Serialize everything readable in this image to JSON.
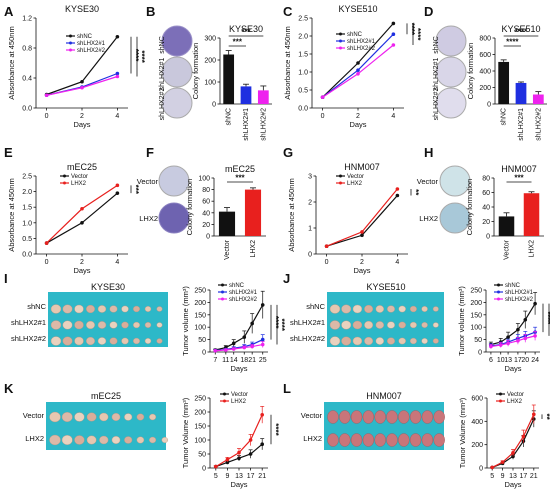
{
  "panels": {
    "A": {
      "letter": "A"
    },
    "B": {
      "letter": "B"
    },
    "C": {
      "letter": "C"
    },
    "D": {
      "letter": "D"
    },
    "E": {
      "letter": "E"
    },
    "F": {
      "letter": "F"
    },
    "G": {
      "letter": "G"
    },
    "H": {
      "letter": "H"
    },
    "I": {
      "letter": "I"
    },
    "J": {
      "letter": "J"
    },
    "K": {
      "letter": "K"
    },
    "L": {
      "letter": "L"
    }
  },
  "image_labels": {
    "B": [
      "shNC",
      "shLHX2#1",
      "shLHX2#2"
    ],
    "D": [
      "shNC",
      "shLHX2#1",
      "shLHX2#2"
    ],
    "F": [
      "Vector",
      "LHX2"
    ],
    "H": [
      "Vector",
      "LHX2"
    ],
    "I": {
      "title": "KYSE30",
      "rows": [
        "shNC",
        "shLHX2#1",
        "shLHX2#2"
      ]
    },
    "J": {
      "title": "KYSE510",
      "rows": [
        "shNC",
        "shLHX2#1",
        "shLHX2#2"
      ]
    },
    "K": {
      "title": "mEC25",
      "rows": [
        "Vector",
        "LHX2"
      ]
    },
    "L": {
      "title": "HNM007",
      "rows": [
        "Vector",
        "LHX2"
      ]
    }
  },
  "colors": {
    "black": "#111111",
    "blue": "#1f2fe0",
    "magenta": "#ee22ee",
    "red": "#e8201e",
    "dish_blue": "#5b50a8",
    "dish_light": "#d8dde8",
    "tray": "#2db8c8"
  },
  "chart_data": [
    {
      "id": "A",
      "type": "line",
      "title": "KYSE30",
      "xlabel": "Days",
      "ylabel": "Absorbance at 450nm",
      "x": [
        0,
        2,
        4
      ],
      "xticks": [
        0,
        2,
        4
      ],
      "xlim": [
        -0.6,
        4.6
      ],
      "ylim": [
        0,
        1.2
      ],
      "yticks": [
        0.0,
        0.4,
        0.8,
        1.2
      ],
      "series": [
        {
          "name": "shNC",
          "color": "#111111",
          "values": [
            0.18,
            0.35,
            0.95
          ]
        },
        {
          "name": "shLHX2#1",
          "color": "#1f2fe0",
          "values": [
            0.17,
            0.28,
            0.46
          ]
        },
        {
          "name": "shLHX2#2",
          "color": "#ee22ee",
          "values": [
            0.17,
            0.27,
            0.42
          ]
        }
      ],
      "significance": [
        "****",
        "****"
      ]
    },
    {
      "id": "B",
      "type": "bar",
      "title": "KYSE30",
      "ylabel": "Colony formation",
      "categories": [
        "shNC",
        "shLHX2#1",
        "shLHX2#2"
      ],
      "values": [
        225,
        80,
        62
      ],
      "errors": [
        18,
        10,
        20
      ],
      "colors": [
        "#111111",
        "#1f2fe0",
        "#ee22ee"
      ],
      "ylim": [
        0,
        300
      ],
      "yticks": [
        0,
        100,
        200,
        300
      ],
      "significance": [
        "***",
        "***"
      ]
    },
    {
      "id": "C",
      "type": "line",
      "title": "KYSE510",
      "xlabel": "Days",
      "ylabel": "Absorbance at 450nm",
      "x": [
        0,
        2,
        4
      ],
      "xticks": [
        0,
        2,
        4
      ],
      "xlim": [
        -0.6,
        4.6
      ],
      "ylim": [
        0,
        2.5
      ],
      "yticks": [
        0.0,
        0.5,
        1.0,
        1.5,
        2.0,
        2.5
      ],
      "series": [
        {
          "name": "shNC",
          "color": "#111111",
          "values": [
            0.3,
            1.25,
            2.35
          ]
        },
        {
          "name": "shLHX2#1",
          "color": "#1f2fe0",
          "values": [
            0.3,
            1.05,
            2.05
          ]
        },
        {
          "name": "shLHX2#2",
          "color": "#ee22ee",
          "values": [
            0.3,
            0.95,
            1.75
          ]
        }
      ],
      "significance": [
        "****",
        "****"
      ]
    },
    {
      "id": "D",
      "type": "bar",
      "title": "KYSE510",
      "ylabel": "Colony formation",
      "categories": [
        "shNC",
        "shLHX2#1",
        "shLHX2#2"
      ],
      "values": [
        510,
        255,
        115
      ],
      "errors": [
        25,
        12,
        35
      ],
      "colors": [
        "#111111",
        "#1f2fe0",
        "#ee22ee"
      ],
      "ylim": [
        0,
        800
      ],
      "yticks": [
        0,
        200,
        400,
        600,
        800
      ],
      "significance": [
        "****",
        "****"
      ]
    },
    {
      "id": "E",
      "type": "line",
      "title": "mEC25",
      "xlabel": "Days",
      "ylabel": "Absorbance at 450nm",
      "x": [
        0,
        2,
        4
      ],
      "xticks": [
        0,
        2,
        4
      ],
      "xlim": [
        -0.6,
        4.6
      ],
      "ylim": [
        0,
        2.5
      ],
      "yticks": [
        0.0,
        0.5,
        1.0,
        1.5,
        2.0,
        2.5
      ],
      "series": [
        {
          "name": "Vector",
          "color": "#111111",
          "values": [
            0.35,
            1.0,
            1.95
          ]
        },
        {
          "name": "LHX2",
          "color": "#e8201e",
          "values": [
            0.35,
            1.45,
            2.2
          ]
        }
      ],
      "significance": [
        "***"
      ]
    },
    {
      "id": "F",
      "type": "bar",
      "title": "mEC25",
      "ylabel": "Colony formation",
      "categories": [
        "Vector",
        "LHX2"
      ],
      "values": [
        42,
        80
      ],
      "errors": [
        7,
        3
      ],
      "colors": [
        "#111111",
        "#e8201e"
      ],
      "ylim": [
        0,
        100
      ],
      "yticks": [
        0,
        20,
        40,
        60,
        80,
        100
      ],
      "significance": [
        "***"
      ]
    },
    {
      "id": "G",
      "type": "line",
      "title": "HNM007",
      "xlabel": "Days",
      "ylabel": "Absorbance at 450nm",
      "x": [
        0,
        2,
        4
      ],
      "xticks": [
        0,
        2,
        4
      ],
      "xlim": [
        -0.6,
        4.6
      ],
      "ylim": [
        0,
        3
      ],
      "yticks": [
        0,
        1,
        2,
        3
      ],
      "series": [
        {
          "name": "Vector",
          "color": "#111111",
          "values": [
            0.3,
            0.72,
            2.25
          ]
        },
        {
          "name": "LHX2",
          "color": "#e8201e",
          "values": [
            0.3,
            0.85,
            2.5
          ]
        }
      ],
      "significance": [
        "**"
      ]
    },
    {
      "id": "H",
      "type": "bar",
      "title": "HNM007",
      "ylabel": "Colony formation",
      "categories": [
        "Vector",
        "LHX2"
      ],
      "values": [
        27,
        59
      ],
      "errors": [
        5,
        2
      ],
      "colors": [
        "#111111",
        "#e8201e"
      ],
      "ylim": [
        0,
        80
      ],
      "yticks": [
        0,
        20,
        40,
        60,
        80
      ],
      "significance": [
        "***"
      ]
    },
    {
      "id": "I",
      "type": "line",
      "ylabel": "Tumor volume (mm³)",
      "xlabel": "Days",
      "x": [
        7,
        11,
        14,
        18,
        21,
        25
      ],
      "xticks": [
        7,
        11,
        14,
        18,
        21,
        25
      ],
      "xlim": [
        5,
        27
      ],
      "ylim": [
        0,
        250
      ],
      "yticks": [
        0,
        50,
        100,
        150,
        200,
        250
      ],
      "series": [
        {
          "name": "shNC",
          "color": "#111111",
          "values": [
            8,
            18,
            35,
            60,
            115,
            190
          ],
          "errors": [
            4,
            8,
            15,
            25,
            40,
            55
          ]
        },
        {
          "name": "shLHX2#1",
          "color": "#1f2fe0",
          "values": [
            6,
            10,
            15,
            22,
            30,
            50
          ],
          "errors": [
            3,
            4,
            6,
            8,
            10,
            20
          ]
        },
        {
          "name": "shLHX2#2",
          "color": "#ee22ee",
          "values": [
            5,
            8,
            12,
            18,
            22,
            30
          ],
          "errors": [
            3,
            4,
            5,
            6,
            8,
            12
          ]
        }
      ],
      "significance": [
        "****",
        "****"
      ]
    },
    {
      "id": "J",
      "type": "line",
      "ylabel": "Tumor volume (mm³)",
      "xlabel": "Days",
      "x": [
        6,
        10,
        13,
        17,
        20,
        24
      ],
      "xticks": [
        6,
        10,
        13,
        17,
        20,
        24
      ],
      "xlim": [
        4,
        26
      ],
      "ylim": [
        0,
        250
      ],
      "yticks": [
        0,
        50,
        100,
        150,
        200,
        250
      ],
      "series": [
        {
          "name": "shNC",
          "color": "#111111",
          "values": [
            30,
            40,
            60,
            90,
            130,
            195
          ],
          "errors": [
            10,
            15,
            20,
            25,
            35,
            45
          ]
        },
        {
          "name": "shLHX2#1",
          "color": "#1f2fe0",
          "values": [
            25,
            30,
            40,
            55,
            65,
            80
          ],
          "errors": [
            8,
            10,
            12,
            15,
            18,
            20
          ]
        },
        {
          "name": "shLHX2#2",
          "color": "#ee22ee",
          "values": [
            22,
            28,
            35,
            45,
            55,
            65
          ],
          "errors": [
            8,
            10,
            12,
            14,
            16,
            18
          ]
        }
      ],
      "significance": [
        "****",
        "****"
      ]
    },
    {
      "id": "K",
      "type": "line",
      "ylabel": "Tumor Volume (mm³)",
      "xlabel": "Days",
      "x": [
        5,
        9,
        13,
        17,
        21
      ],
      "xticks": [
        5,
        9,
        13,
        17,
        21
      ],
      "xlim": [
        3,
        23
      ],
      "ylim": [
        0,
        250
      ],
      "yticks": [
        0,
        50,
        100,
        150,
        200,
        250
      ],
      "series": [
        {
          "name": "Vector",
          "color": "#111111",
          "values": [
            5,
            20,
            35,
            50,
            85
          ],
          "errors": [
            2,
            5,
            10,
            15,
            20
          ]
        },
        {
          "name": "LHX2",
          "color": "#e8201e",
          "values": [
            5,
            30,
            55,
            100,
            190
          ],
          "errors": [
            3,
            8,
            15,
            20,
            30
          ]
        }
      ],
      "significance": [
        "****"
      ]
    },
    {
      "id": "L",
      "type": "line",
      "ylabel": "Tumor Volume (mm³)",
      "xlabel": "Days",
      "x": [
        5,
        9,
        13,
        17,
        21
      ],
      "xticks": [
        5,
        9,
        13,
        17,
        21
      ],
      "xlim": [
        3,
        23
      ],
      "ylim": [
        0,
        600
      ],
      "yticks": [
        0,
        200,
        400,
        600
      ],
      "series": [
        {
          "name": "Vector",
          "color": "#111111",
          "values": [
            5,
            40,
            100,
            230,
            420
          ],
          "errors": [
            3,
            10,
            25,
            50,
            70
          ]
        },
        {
          "name": "LHX2",
          "color": "#e8201e",
          "values": [
            5,
            50,
            130,
            270,
            460
          ],
          "errors": [
            3,
            12,
            30,
            55,
            80
          ]
        }
      ],
      "significance": [
        "**"
      ]
    }
  ]
}
